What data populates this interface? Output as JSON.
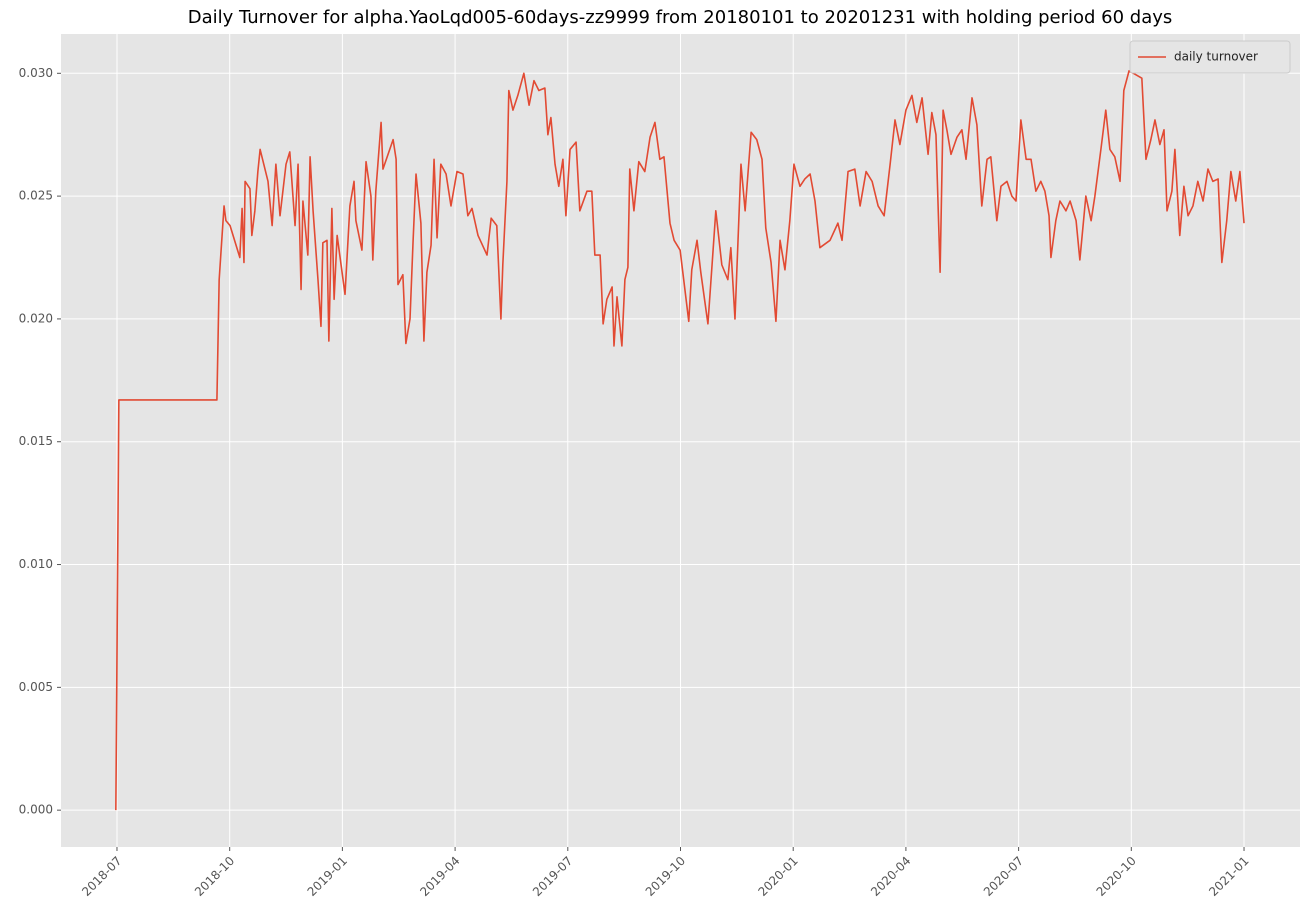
{
  "chart_data": {
    "type": "line",
    "title": "Daily Turnover for alpha.YaoLqd005-60days-zz9999 from 20180101 to 20201231 with holding period 60 days",
    "x": [
      5.97,
      6.05,
      6.35,
      8.66,
      8.72,
      8.85,
      8.9,
      9.01,
      9.27,
      9.33,
      9.38,
      9.41,
      9.54,
      9.59,
      9.67,
      9.75,
      9.81,
      10.02,
      10.13,
      10.23,
      10.34,
      10.5,
      10.6,
      10.74,
      10.82,
      10.9,
      10.95,
      11.08,
      11.14,
      11.22,
      11.35,
      11.43,
      11.48,
      11.59,
      11.64,
      11.72,
      11.78,
      11.86,
      12.07,
      12.2,
      12.31,
      12.36,
      12.52,
      12.63,
      12.76,
      12.81,
      12.89,
      13.03,
      13.08,
      13.35,
      13.43,
      13.48,
      13.61,
      13.69,
      13.8,
      13.88,
      13.96,
      14.09,
      14.17,
      14.25,
      14.36,
      14.44,
      14.52,
      14.62,
      14.76,
      14.89,
      15.05,
      15.21,
      15.34,
      15.45,
      15.61,
      15.85,
      15.96,
      16.11,
      16.22,
      16.27,
      16.38,
      16.43,
      16.54,
      16.67,
      16.83,
      16.97,
      17.1,
      17.23,
      17.39,
      17.47,
      17.55,
      17.66,
      17.76,
      17.87,
      17.95,
      18.06,
      18.22,
      18.32,
      18.51,
      18.64,
      18.72,
      18.86,
      18.94,
      19.04,
      19.18,
      19.23,
      19.31,
      19.44,
      19.52,
      19.6,
      19.65,
      19.76,
      19.89,
      20.05,
      20.19,
      20.32,
      20.45,
      20.56,
      20.72,
      20.83,
      20.99,
      21.22,
      21.3,
      21.44,
      21.54,
      21.73,
      21.84,
      21.94,
      22.1,
      22.26,
      22.34,
      22.45,
      22.61,
      22.72,
      22.88,
      23.03,
      23.17,
      23.27,
      23.41,
      23.54,
      23.65,
      23.78,
      23.91,
      24.02,
      24.18,
      24.31,
      24.45,
      24.58,
      24.71,
      24.98,
      25.19,
      25.3,
      25.46,
      25.64,
      25.78,
      25.94,
      26.1,
      26.26,
      26.42,
      26.58,
      26.71,
      26.84,
      27.0,
      27.16,
      27.29,
      27.43,
      27.59,
      27.69,
      27.8,
      27.91,
      27.99,
      28.09,
      28.2,
      28.36,
      28.49,
      28.6,
      28.76,
      28.89,
      29.02,
      29.16,
      29.26,
      29.42,
      29.53,
      29.69,
      29.82,
      29.93,
      30.06,
      30.2,
      30.33,
      30.46,
      30.59,
      30.7,
      30.81,
      30.86,
      30.99,
      31.1,
      31.26,
      31.37,
      31.53,
      31.63,
      31.79,
      31.93,
      32.03,
      32.19,
      32.32,
      32.43,
      32.56,
      32.7,
      32.8,
      32.94,
      33.28,
      33.39,
      33.52,
      33.63,
      33.76,
      33.87,
      33.95,
      34.08,
      34.16,
      34.29,
      34.4,
      34.51,
      34.64,
      34.77,
      34.91,
      35.04,
      35.17,
      35.31,
      35.41,
      35.54,
      35.65,
      35.78,
      35.89,
      36.0
    ],
    "series": [
      {
        "name": "daily turnover",
        "color": "#e24a33",
        "values": [
          0.0,
          0.0167,
          0.0167,
          0.0167,
          0.0216,
          0.0246,
          0.024,
          0.0238,
          0.0225,
          0.0245,
          0.0223,
          0.0256,
          0.0253,
          0.0234,
          0.0244,
          0.026,
          0.0269,
          0.0256,
          0.0238,
          0.0263,
          0.0242,
          0.0263,
          0.0268,
          0.0238,
          0.0263,
          0.0212,
          0.0248,
          0.0226,
          0.0266,
          0.0244,
          0.0216,
          0.0197,
          0.0231,
          0.0232,
          0.0191,
          0.0245,
          0.0208,
          0.0234,
          0.021,
          0.0246,
          0.0256,
          0.024,
          0.0228,
          0.0264,
          0.025,
          0.0224,
          0.0252,
          0.028,
          0.0261,
          0.0273,
          0.0265,
          0.0214,
          0.0218,
          0.019,
          0.02,
          0.0231,
          0.0259,
          0.0239,
          0.0191,
          0.0219,
          0.023,
          0.0265,
          0.0233,
          0.0263,
          0.0259,
          0.0246,
          0.026,
          0.0259,
          0.0242,
          0.0245,
          0.0234,
          0.0226,
          0.0241,
          0.0238,
          0.02,
          0.0222,
          0.0256,
          0.0293,
          0.0285,
          0.0291,
          0.03,
          0.0287,
          0.0297,
          0.0293,
          0.0294,
          0.0275,
          0.0282,
          0.0263,
          0.0254,
          0.0265,
          0.0242,
          0.0269,
          0.0272,
          0.0244,
          0.0252,
          0.0252,
          0.0226,
          0.0226,
          0.0198,
          0.0208,
          0.0213,
          0.0189,
          0.0209,
          0.0189,
          0.0216,
          0.0221,
          0.0261,
          0.0244,
          0.0264,
          0.026,
          0.0274,
          0.028,
          0.0265,
          0.0266,
          0.0239,
          0.0232,
          0.0228,
          0.0199,
          0.022,
          0.0232,
          0.0219,
          0.0198,
          0.0222,
          0.0244,
          0.0222,
          0.0216,
          0.0229,
          0.02,
          0.0263,
          0.0244,
          0.0276,
          0.0273,
          0.0265,
          0.0237,
          0.0223,
          0.0199,
          0.0232,
          0.022,
          0.024,
          0.0263,
          0.0254,
          0.0257,
          0.0259,
          0.0248,
          0.0229,
          0.0232,
          0.0239,
          0.0232,
          0.026,
          0.0261,
          0.0246,
          0.026,
          0.0256,
          0.0246,
          0.0242,
          0.0263,
          0.0281,
          0.0271,
          0.0285,
          0.0291,
          0.028,
          0.029,
          0.0267,
          0.0284,
          0.0275,
          0.0219,
          0.0285,
          0.0277,
          0.0267,
          0.0274,
          0.0277,
          0.0265,
          0.029,
          0.0279,
          0.0246,
          0.0265,
          0.0266,
          0.024,
          0.0254,
          0.0256,
          0.025,
          0.0248,
          0.0281,
          0.0265,
          0.0265,
          0.0252,
          0.0256,
          0.0252,
          0.0242,
          0.0225,
          0.024,
          0.0248,
          0.0244,
          0.0248,
          0.024,
          0.0224,
          0.025,
          0.024,
          0.025,
          0.0269,
          0.0285,
          0.0269,
          0.0266,
          0.0256,
          0.0293,
          0.0301,
          0.0298,
          0.0265,
          0.0273,
          0.0281,
          0.0271,
          0.0277,
          0.0244,
          0.0252,
          0.0269,
          0.0234,
          0.0254,
          0.0242,
          0.0246,
          0.0256,
          0.0248,
          0.0261,
          0.0256,
          0.0257,
          0.0223,
          0.024,
          0.026,
          0.0248,
          0.026,
          0.0239
        ]
      }
    ],
    "xlim": [
      4.51,
      37.49
    ],
    "xticks": [
      {
        "value": 6,
        "label": "2018-07"
      },
      {
        "value": 9,
        "label": "2018-10"
      },
      {
        "value": 12,
        "label": "2019-01"
      },
      {
        "value": 15,
        "label": "2019-04"
      },
      {
        "value": 18,
        "label": "2019-07"
      },
      {
        "value": 21,
        "label": "2019-10"
      },
      {
        "value": 24,
        "label": "2020-01"
      },
      {
        "value": 27,
        "label": "2020-04"
      },
      {
        "value": 30,
        "label": "2020-07"
      },
      {
        "value": 33,
        "label": "2020-10"
      },
      {
        "value": 36,
        "label": "2021-01"
      }
    ],
    "ylim": [
      -0.0015,
      0.0316
    ],
    "yticks": [
      {
        "value": 0,
        "label": "0.000"
      },
      {
        "value": 0.005,
        "label": "0.005"
      },
      {
        "value": 0.01,
        "label": "0.010"
      },
      {
        "value": 0.015,
        "label": "0.015"
      },
      {
        "value": 0.02,
        "label": "0.020"
      },
      {
        "value": 0.025,
        "label": "0.025"
      },
      {
        "value": 0.03,
        "label": "0.030"
      }
    ],
    "grid": true,
    "legend": "upper right"
  }
}
